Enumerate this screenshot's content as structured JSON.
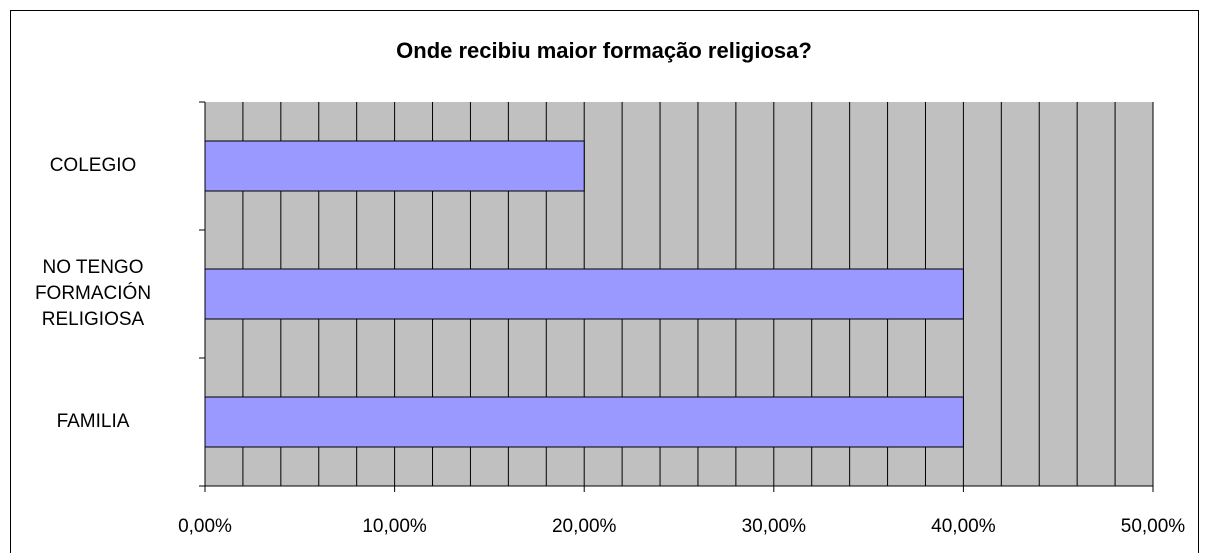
{
  "chart_data": {
    "type": "barh",
    "title": "Onde recibiu maior formação religiosa?",
    "categories": [
      "COLEGIO",
      "NO TENGO\nFORMACIÓN\nRELIGIOSA",
      "FAMILIA"
    ],
    "values": [
      20,
      40,
      40
    ],
    "color": "#9999ff",
    "xlim": [
      0,
      50
    ],
    "xticks": [
      {
        "value": 0,
        "label": "0,00%"
      },
      {
        "value": 10,
        "label": "10,00%"
      },
      {
        "value": 20,
        "label": "20,00%"
      },
      {
        "value": 30,
        "label": "30,00%"
      },
      {
        "value": 40,
        "label": "40,00%"
      },
      {
        "value": 50,
        "label": "50,00%"
      }
    ],
    "xgrid": [
      0,
      2,
      4,
      6,
      8,
      10,
      12,
      14,
      16,
      18,
      20,
      22,
      24,
      26,
      28,
      30,
      32,
      34,
      36,
      38,
      40,
      42,
      44,
      46,
      48,
      50
    ],
    "grid": true
  }
}
